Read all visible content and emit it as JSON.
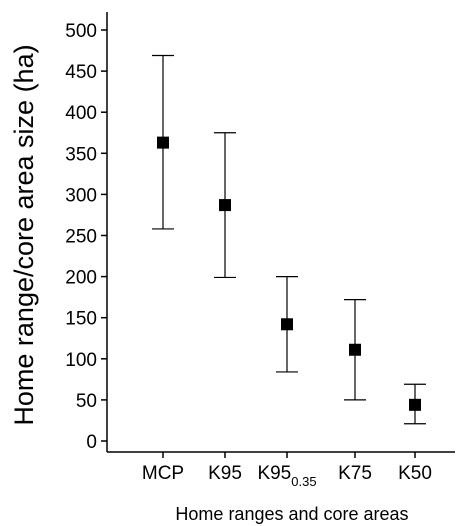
{
  "chart_data": {
    "type": "scatter",
    "title": "",
    "xlabel": "Home ranges and core areas",
    "ylabel": "Home range/core area size (ha)",
    "ylim": [
      0,
      500
    ],
    "yticks": [
      0,
      50,
      100,
      150,
      200,
      250,
      300,
      350,
      400,
      450,
      500
    ],
    "grid": false,
    "legend": "none",
    "colors": {
      "marker": "#000000",
      "axis": "#000000",
      "errorbar": "#000000"
    },
    "categories": [
      {
        "main": "MCP",
        "sub": ""
      },
      {
        "main": "K95",
        "sub": ""
      },
      {
        "main": "K95",
        "sub": "0.35"
      },
      {
        "main": "K75",
        "sub": ""
      },
      {
        "main": "K50",
        "sub": ""
      }
    ],
    "points": [
      {
        "category": "MCP",
        "value": 363,
        "lower": 258,
        "upper": 469
      },
      {
        "category": "K95",
        "value": 287,
        "lower": 199,
        "upper": 375
      },
      {
        "category": "K95 0.35",
        "value": 142,
        "lower": 84,
        "upper": 200
      },
      {
        "category": "K75",
        "value": 111,
        "lower": 50,
        "upper": 172
      },
      {
        "category": "K50",
        "value": 44,
        "lower": 21,
        "upper": 69
      }
    ]
  }
}
